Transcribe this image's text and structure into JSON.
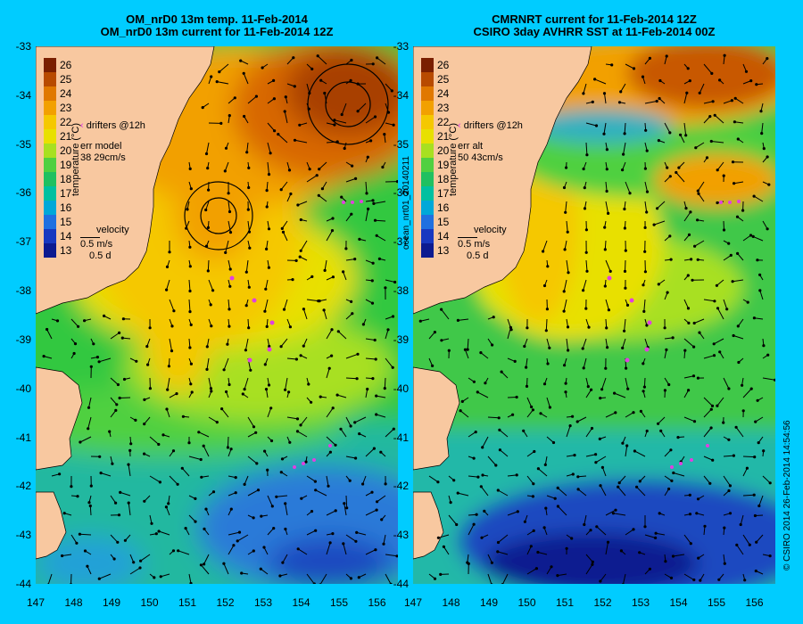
{
  "left_panel": {
    "title_line1": "OM_nrD0 13m temp. 11-Feb-2014",
    "title_line2": "OM_nrD0 13m current for 11-Feb-2014 12Z",
    "legend_drifters": "drifters @12h",
    "legend_err_label": "err model",
    "legend_err_value": "38 29cm/s",
    "velocity_label": "velocity",
    "velocity_scale": "0.5 m/s",
    "velocity_time": "0.5 d"
  },
  "right_panel": {
    "title_line1": "CMRNRT current for 11-Feb-2014 12Z",
    "title_line2": "CSIRO 3day AVHRR SST at 11-Feb-2014 00Z",
    "legend_drifters": "drifters @12h",
    "legend_err_label": "err alt",
    "legend_err_value": "50 43cm/s",
    "velocity_label": "velocity",
    "velocity_scale": "0.5 m/s",
    "velocity_time": "0.5 d"
  },
  "side_label_middle": "ocean_nrt01_20140211",
  "side_label_right": "© CSIRO 2014   26-Feb-2014 14:54:56",
  "axes": {
    "lat_ticks": [
      "-33",
      "-34",
      "-35",
      "-36",
      "-37",
      "-38",
      "-39",
      "-40",
      "-41",
      "-42",
      "-43",
      "-44"
    ],
    "lon_ticks": [
      "147",
      "148",
      "149",
      "150",
      "151",
      "152",
      "153",
      "154",
      "155",
      "156"
    ]
  },
  "colorbar": {
    "ticks": [
      "26",
      "25",
      "24",
      "23",
      "22",
      "21",
      "20",
      "19",
      "18",
      "17",
      "16",
      "15",
      "14",
      "13"
    ],
    "unit": "temperature (°C)",
    "colors": [
      "#7a1f00",
      "#b84a00",
      "#e07800",
      "#f2a000",
      "#f5c800",
      "#e8e000",
      "#a8e020",
      "#50d040",
      "#20c060",
      "#00c0a0",
      "#00a8d8",
      "#2070e0",
      "#1838c0",
      "#0c1a90"
    ]
  },
  "colors": {
    "background": "#00ccff",
    "land": "#f8c8a0",
    "drifter": "#e040e0"
  }
}
